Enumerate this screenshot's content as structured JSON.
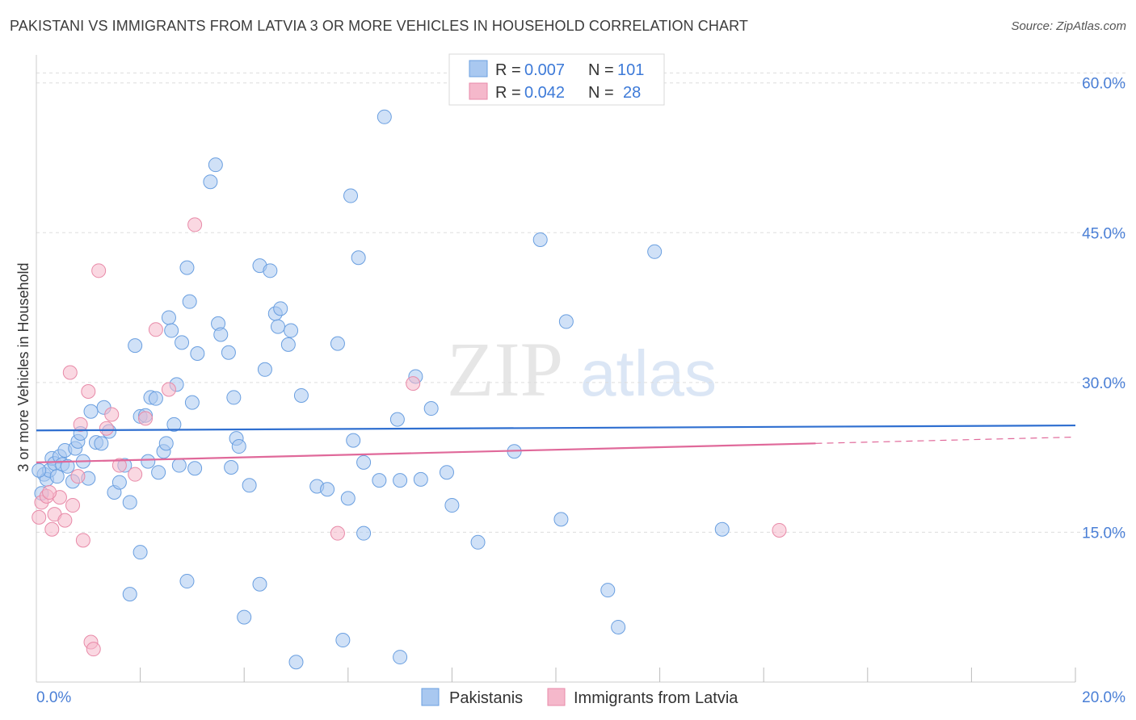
{
  "title": "PAKISTANI VS IMMIGRANTS FROM LATVIA 3 OR MORE VEHICLES IN HOUSEHOLD CORRELATION CHART",
  "source": "Source: ZipAtlas.com",
  "watermark": {
    "zip": "ZIP",
    "atlas": "atlas"
  },
  "colors": {
    "pakistani_fill": "#a9c8f0",
    "pakistani_stroke": "#6a9fe0",
    "pakistani_line": "#2f6fd0",
    "latvia_fill": "#f5b8cb",
    "latvia_stroke": "#e88aa8",
    "latvia_line": "#e0699a",
    "tick_text": "#4a7fd6",
    "grid": "#dddddd"
  },
  "legend_top": {
    "rows": [
      {
        "r_label": "R =",
        "r_value": "0.007",
        "n_label": "N =",
        "n_value": "101"
      },
      {
        "r_label": "R =",
        "r_value": "0.042",
        "n_label": "N =",
        "n_value": "28"
      }
    ]
  },
  "chart_data": {
    "type": "scatter",
    "title": "PAKISTANI VS IMMIGRANTS FROM LATVIA 3 OR MORE VEHICLES IN HOUSEHOLD CORRELATION CHART",
    "xlabel": "",
    "ylabel": "3 or more Vehicles in Household",
    "xlim": [
      0,
      20
    ],
    "ylim": [
      0,
      62
    ],
    "x_tick_labels": [
      "0.0%",
      "20.0%"
    ],
    "y_ticks": [
      15,
      30,
      45,
      60
    ],
    "y_tick_labels": [
      "15.0%",
      "30.0%",
      "45.0%",
      "60.0%"
    ],
    "grid": "horizontal dashed",
    "legend_placement": "top-center and bottom",
    "series": [
      {
        "name": "Pakistanis",
        "R": 0.007,
        "N": 101,
        "trend": {
          "x": [
            0,
            20
          ],
          "y": [
            25.2,
            25.7
          ]
        },
        "points": [
          [
            0.15,
            20.8
          ],
          [
            0.2,
            20.3
          ],
          [
            0.25,
            21.2
          ],
          [
            0.3,
            22.4
          ],
          [
            0.35,
            21.9
          ],
          [
            0.45,
            22.6
          ],
          [
            0.5,
            21.8
          ],
          [
            0.55,
            23.2
          ],
          [
            0.6,
            21.6
          ],
          [
            0.7,
            20.1
          ],
          [
            0.75,
            23.4
          ],
          [
            0.8,
            24.1
          ],
          [
            0.85,
            24.9
          ],
          [
            0.9,
            22.1
          ],
          [
            1.0,
            20.4
          ],
          [
            1.05,
            27.1
          ],
          [
            1.15,
            24.0
          ],
          [
            1.25,
            23.9
          ],
          [
            1.3,
            27.5
          ],
          [
            1.4,
            25.1
          ],
          [
            1.5,
            19.0
          ],
          [
            1.6,
            20.0
          ],
          [
            1.7,
            21.7
          ],
          [
            1.8,
            18.0
          ],
          [
            1.9,
            33.7
          ],
          [
            2.0,
            26.6
          ],
          [
            2.1,
            26.7
          ],
          [
            2.15,
            22.1
          ],
          [
            2.2,
            28.5
          ],
          [
            2.3,
            28.4
          ],
          [
            2.35,
            21.0
          ],
          [
            2.45,
            23.1
          ],
          [
            2.5,
            23.9
          ],
          [
            2.55,
            36.5
          ],
          [
            2.6,
            35.2
          ],
          [
            2.65,
            25.8
          ],
          [
            2.7,
            29.8
          ],
          [
            2.75,
            21.7
          ],
          [
            2.8,
            34.0
          ],
          [
            2.9,
            41.5
          ],
          [
            2.95,
            38.1
          ],
          [
            3.0,
            28.0
          ],
          [
            3.05,
            21.4
          ],
          [
            3.1,
            32.9
          ],
          [
            3.35,
            50.1
          ],
          [
            3.45,
            51.8
          ],
          [
            3.5,
            35.9
          ],
          [
            3.55,
            34.8
          ],
          [
            3.7,
            33.0
          ],
          [
            3.75,
            21.5
          ],
          [
            3.8,
            28.5
          ],
          [
            3.85,
            24.4
          ],
          [
            3.9,
            23.6
          ],
          [
            4.1,
            19.7
          ],
          [
            4.3,
            41.7
          ],
          [
            4.4,
            31.3
          ],
          [
            4.5,
            41.2
          ],
          [
            4.6,
            36.9
          ],
          [
            4.65,
            35.6
          ],
          [
            4.7,
            37.4
          ],
          [
            4.85,
            33.8
          ],
          [
            4.9,
            35.2
          ],
          [
            5.1,
            28.7
          ],
          [
            5.4,
            19.6
          ],
          [
            5.6,
            19.3
          ],
          [
            5.8,
            33.9
          ],
          [
            6.0,
            18.4
          ],
          [
            6.05,
            48.7
          ],
          [
            6.1,
            24.2
          ],
          [
            6.2,
            42.5
          ],
          [
            6.3,
            22.0
          ],
          [
            6.6,
            20.2
          ],
          [
            6.7,
            56.6
          ],
          [
            6.95,
            26.3
          ],
          [
            7.0,
            20.2
          ],
          [
            7.3,
            30.6
          ],
          [
            7.6,
            27.4
          ],
          [
            7.9,
            21.0
          ],
          [
            8.0,
            17.7
          ],
          [
            8.5,
            14.0
          ],
          [
            9.7,
            44.3
          ],
          [
            10.1,
            16.3
          ],
          [
            10.2,
            36.1
          ],
          [
            11.9,
            43.1
          ],
          [
            13.2,
            15.3
          ],
          [
            1.8,
            8.8
          ],
          [
            2.0,
            13.0
          ],
          [
            2.9,
            10.1
          ],
          [
            4.0,
            6.5
          ],
          [
            4.3,
            9.8
          ],
          [
            5.0,
            2.0
          ],
          [
            5.9,
            4.2
          ],
          [
            6.3,
            14.9
          ],
          [
            7.0,
            2.5
          ],
          [
            7.4,
            20.3
          ],
          [
            9.2,
            23.1
          ],
          [
            11.0,
            9.2
          ],
          [
            11.2,
            5.5
          ],
          [
            0.05,
            21.2
          ],
          [
            0.1,
            18.9
          ],
          [
            0.4,
            20.6
          ]
        ]
      },
      {
        "name": "Immigrants from Latvia",
        "R": 0.042,
        "N": 28,
        "trend": {
          "x": [
            0,
            15
          ],
          "y": [
            22.0,
            23.9
          ]
        },
        "points": [
          [
            0.05,
            16.5
          ],
          [
            0.1,
            18.0
          ],
          [
            0.2,
            18.6
          ],
          [
            0.3,
            15.3
          ],
          [
            0.35,
            16.8
          ],
          [
            0.45,
            18.5
          ],
          [
            0.55,
            16.2
          ],
          [
            0.65,
            31.0
          ],
          [
            0.7,
            17.7
          ],
          [
            0.8,
            20.6
          ],
          [
            0.85,
            25.8
          ],
          [
            0.9,
            14.2
          ],
          [
            1.0,
            29.1
          ],
          [
            1.05,
            4.0
          ],
          [
            1.1,
            3.3
          ],
          [
            1.2,
            41.2
          ],
          [
            1.35,
            25.4
          ],
          [
            1.45,
            26.8
          ],
          [
            1.6,
            21.7
          ],
          [
            1.9,
            20.8
          ],
          [
            2.1,
            26.4
          ],
          [
            2.3,
            35.3
          ],
          [
            2.55,
            29.3
          ],
          [
            3.05,
            45.8
          ],
          [
            5.8,
            14.9
          ],
          [
            7.25,
            29.9
          ],
          [
            14.3,
            15.2
          ],
          [
            0.25,
            19.0
          ]
        ]
      }
    ]
  },
  "bottom_legend": [
    {
      "label": "Pakistanis"
    },
    {
      "label": "Immigrants from Latvia"
    }
  ]
}
